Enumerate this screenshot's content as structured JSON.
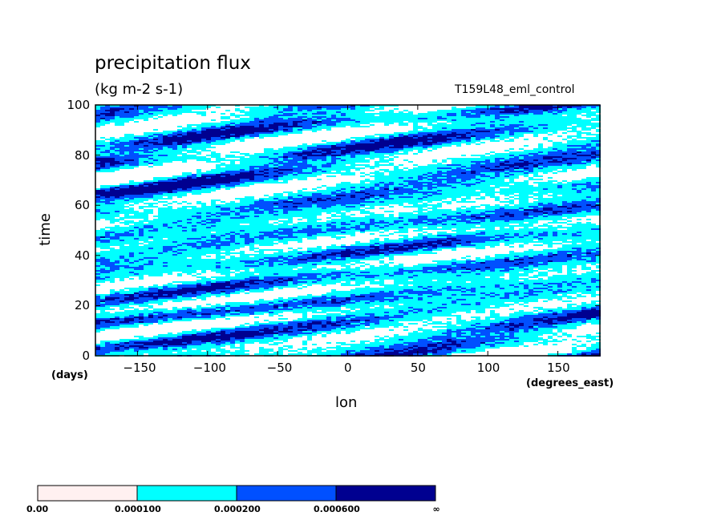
{
  "chart_data": {
    "type": "heatmap",
    "title": "precipitation flux",
    "units": "(kg m-2 s-1)",
    "run_label": "T159L48_eml_control",
    "xlabel": "lon",
    "x_unit": "(degrees_east)",
    "ylabel": "time",
    "y_unit": "(days)",
    "xlim": [
      -180,
      180
    ],
    "ylim": [
      0,
      100
    ],
    "x_ticks": [
      -150,
      -100,
      -50,
      0,
      50,
      100,
      150
    ],
    "y_ticks": [
      0,
      20,
      40,
      60,
      80,
      100
    ],
    "colorbar": {
      "labels": [
        "0.00",
        "0.000100",
        "0.000200",
        "0.000600",
        "∞"
      ],
      "colors": [
        "#fff0f0",
        "#00ffff",
        "#0050ff",
        "#000090"
      ]
    }
  }
}
